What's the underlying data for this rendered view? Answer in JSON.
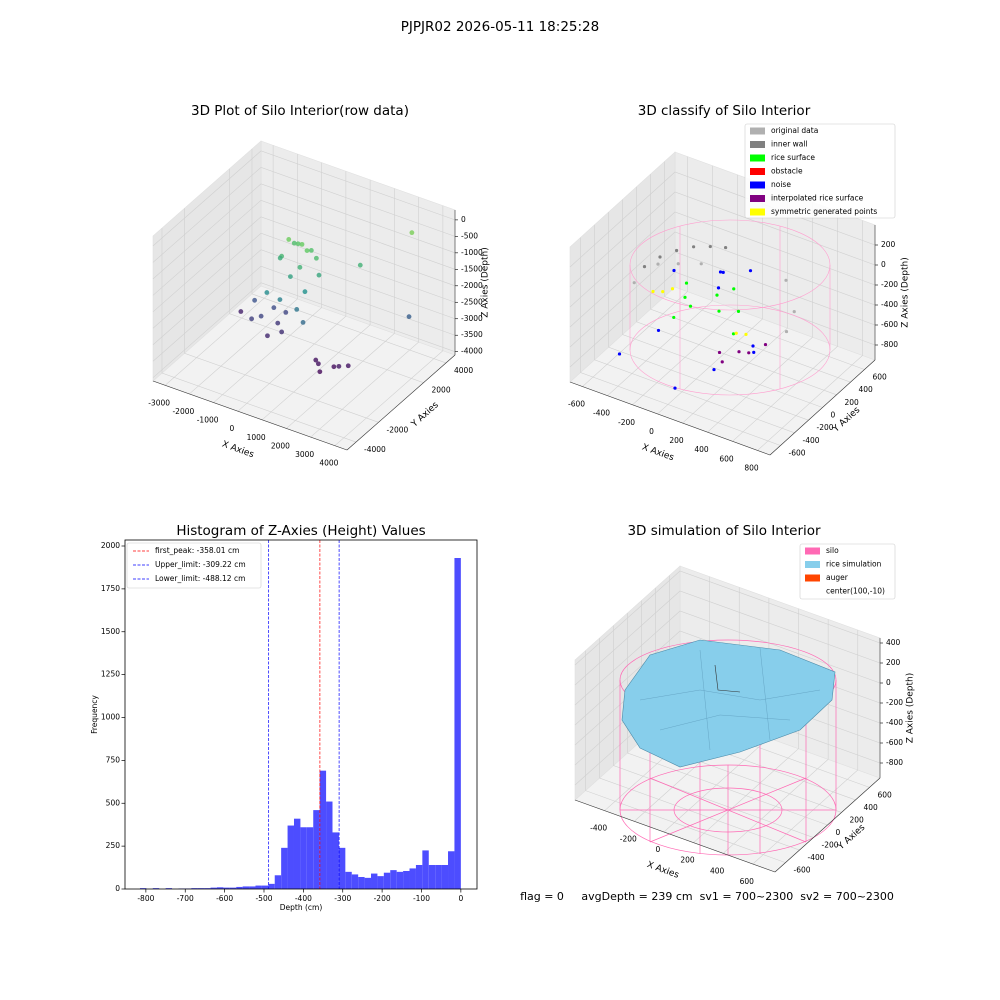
{
  "title": "PJPJR02 2026-05-11 18:25:28",
  "chart_data": [
    {
      "type": "scatter3d",
      "title": "3D Plot of Silo Interior(row data)",
      "xlabel": "X Axies",
      "ylabel": "Y Axies",
      "zlabel": "Z Axies (Depth)",
      "colormap": "viridis",
      "xlim": [
        -3500,
        4500
      ],
      "ylim": [
        -4800,
        4800
      ],
      "zlim": [
        -4100,
        300
      ],
      "xticks": [
        -3000,
        -2000,
        -1000,
        0,
        1000,
        2000,
        3000,
        4000
      ],
      "yticks": [
        -4000,
        -2000,
        2000,
        4000
      ],
      "zticks": [
        0,
        -500,
        -1000,
        -1500,
        -2000,
        -2500,
        -3000,
        -3500,
        -4000
      ],
      "points": {
        "x": [
          -500,
          0,
          300,
          -300,
          200,
          -700,
          -900,
          100,
          500,
          -200,
          700,
          -600,
          400,
          1800,
          -400,
          200,
          -800,
          600,
          -2800,
          3300,
          3000,
          -1500,
          -1000,
          -1300,
          -700,
          -1800,
          -900,
          -1100,
          -2000,
          1000,
          1500,
          1800,
          1200,
          2000,
          800
        ],
        "y": [
          800,
          900,
          700,
          1200,
          1300,
          600,
          900,
          500,
          1100,
          300,
          900,
          1500,
          300,
          2200,
          -200,
          0,
          -500,
          -300,
          1500,
          3300,
          4200,
          500,
          900,
          1200,
          600,
          300,
          1400,
          200,
          1000,
          200,
          500,
          300,
          -100,
          700,
          400
        ],
        "z": [
          -700,
          -750,
          -800,
          -900,
          -1000,
          -1200,
          -1400,
          -1300,
          -1100,
          -1600,
          -1500,
          -1050,
          -1900,
          -1300,
          -2200,
          -2400,
          -2000,
          -2600,
          -3700,
          -2800,
          -600,
          -3200,
          -3400,
          -3100,
          -3500,
          -3300,
          -3200,
          -3600,
          -3000,
          -3900,
          -3950,
          -3800,
          -4000,
          -3850,
          -3900
        ]
      }
    },
    {
      "type": "scatter3d",
      "title": "3D classify of Silo Interior",
      "xlabel": "X Axies",
      "ylabel": "Y Axies",
      "zlabel": "Z Axies (Depth)",
      "xlim": [
        -700,
        900
      ],
      "ylim": [
        -750,
        750
      ],
      "zlim": [
        -950,
        400
      ],
      "xticks": [
        -600,
        -400,
        -200,
        0,
        200,
        400,
        600,
        800
      ],
      "yticks": [
        -600,
        -400,
        -200,
        0,
        200,
        400,
        600
      ],
      "zticks": [
        200,
        0,
        -200,
        -400,
        -600,
        -800
      ],
      "series": [
        {
          "name": "original data",
          "color": "#b0b0b0",
          "x": [
            -550,
            -500,
            -450,
            -350,
            300,
            450,
            500
          ],
          "y": [
            -100,
            150,
            350,
            500,
            550,
            400,
            200
          ],
          "z": [
            -300,
            -250,
            -350,
            -400,
            -300,
            -450,
            -500
          ]
        },
        {
          "name": "inner wall",
          "color": "#808080",
          "x": [
            -580,
            -540,
            -480,
            -400,
            -300,
            -200
          ],
          "y": [
            100,
            250,
            380,
            480,
            540,
            580
          ],
          "z": [
            -280,
            -260,
            -250,
            -240,
            -230,
            -220
          ]
        },
        {
          "name": "rice surface",
          "color": "#00ff00",
          "x": [
            -200,
            -100,
            0,
            100,
            200,
            -300,
            300,
            50,
            -150
          ],
          "y": [
            0,
            -100,
            100,
            -50,
            50,
            200,
            -200,
            250,
            -250
          ],
          "z": [
            -350,
            -330,
            -300,
            -320,
            -340,
            -380,
            -360,
            -310,
            -370
          ]
        },
        {
          "name": "obstacle",
          "color": "#ff0000",
          "x": [],
          "y": [],
          "z": []
        },
        {
          "name": "noise",
          "color": "#0000ff",
          "x": [
            -500,
            -300,
            0,
            200,
            400,
            -100,
            100,
            -400,
            350,
            0,
            50
          ],
          "y": [
            -400,
            -200,
            -500,
            -300,
            -100,
            300,
            400,
            200,
            0,
            150,
            100
          ],
          "z": [
            -800,
            -600,
            -850,
            -700,
            -500,
            -400,
            -200,
            -300,
            -650,
            -100,
            -50
          ]
        },
        {
          "name": "interpolated rice surface",
          "color": "#800080",
          "x": [
            300,
            400,
            500,
            450,
            350
          ],
          "y": [
            -400,
            -300,
            -100,
            -250,
            -450
          ],
          "z": [
            -420,
            -430,
            -440,
            -450,
            -460
          ]
        },
        {
          "name": "symmetric generated points",
          "color": "#ffff00",
          "x": [
            -400,
            -350,
            -300,
            350,
            400
          ],
          "y": [
            -100,
            -50,
            0,
            -250,
            -200
          ],
          "z": [
            -320,
            -330,
            -310,
            -300,
            -320
          ]
        }
      ]
    },
    {
      "type": "histogram",
      "title": "Histogram of Z-Axies (Height) Values",
      "xlabel": "Depth (cm)",
      "ylabel": "Frequency",
      "color": "#4d4dff",
      "xlim": [
        -853,
        41
      ],
      "ylim": [
        0,
        2035
      ],
      "xticks": [
        -800,
        -700,
        -600,
        -500,
        -400,
        -300,
        -200,
        -100,
        0
      ],
      "yticks": [
        0,
        250,
        500,
        750,
        1000,
        1250,
        1500,
        1750,
        2000
      ],
      "bins": [
        -815,
        -798.7,
        -782.4,
        -766.1,
        -749.8,
        -733.5,
        -717.2,
        -700.9,
        -684.6,
        -668.3,
        -652,
        -635.7,
        -619.4,
        -603.1,
        -586.8,
        -570.5,
        -554.2,
        -537.9,
        -521.6,
        -505.3,
        -489,
        -472.7,
        -456.4,
        -440.1,
        -423.8,
        -407.5,
        -391.2,
        -374.9,
        -358.6,
        -342.3,
        -326,
        -309.7,
        -293.4,
        -277.1,
        -260.8,
        -244.5,
        -228.2,
        -211.9,
        -195.6,
        -179.3,
        -163,
        -146.7,
        -130.4,
        -114.1,
        -97.8,
        -81.5,
        -65.2,
        -48.9,
        -32.6,
        -16.3,
        0
      ],
      "counts": [
        5,
        0,
        5,
        0,
        5,
        0,
        3,
        3,
        5,
        5,
        5,
        8,
        10,
        8,
        8,
        12,
        15,
        15,
        20,
        20,
        30,
        80,
        240,
        370,
        410,
        360,
        360,
        460,
        690,
        510,
        330,
        240,
        100,
        85,
        70,
        65,
        90,
        75,
        95,
        110,
        100,
        105,
        120,
        140,
        225,
        140,
        140,
        140,
        220,
        1930
      ],
      "lines": [
        {
          "label": "first_peak: -358.01 cm",
          "value": -358.01,
          "color": "#ff0000"
        },
        {
          "label": "Upper_limit: -309.22 cm",
          "value": -309.22,
          "color": "#0000ff"
        },
        {
          "label": "Lower_limit: -488.12 cm",
          "value": -488.12,
          "color": "#0000ff"
        }
      ]
    },
    {
      "type": "surface3d",
      "title": "3D simulation of Silo Interior",
      "xlabel": "X Axies",
      "ylabel": "Y Axies",
      "zlabel": "Z Axies (Depth)",
      "xlim": [
        -600,
        750
      ],
      "ylim": [
        -750,
        750
      ],
      "zlim": [
        -950,
        450
      ],
      "xticks": [
        -400,
        -200,
        0,
        200,
        400,
        600
      ],
      "yticks": [
        -600,
        -400,
        -200,
        0,
        200,
        400,
        600
      ],
      "zticks": [
        400,
        200,
        0,
        -200,
        -400,
        -600,
        -800
      ],
      "series": [
        {
          "name": "silo",
          "color": "#ff69b4"
        },
        {
          "name": "rice simulation",
          "color": "#87ceeb"
        },
        {
          "name": "auger",
          "color": "#ff4500"
        },
        {
          "name": "center(100,-10)"
        }
      ],
      "annotation": "flag = 0     avgDepth = 239 cm  sv1 = 700~2300  sv2 = 700~2300"
    }
  ]
}
